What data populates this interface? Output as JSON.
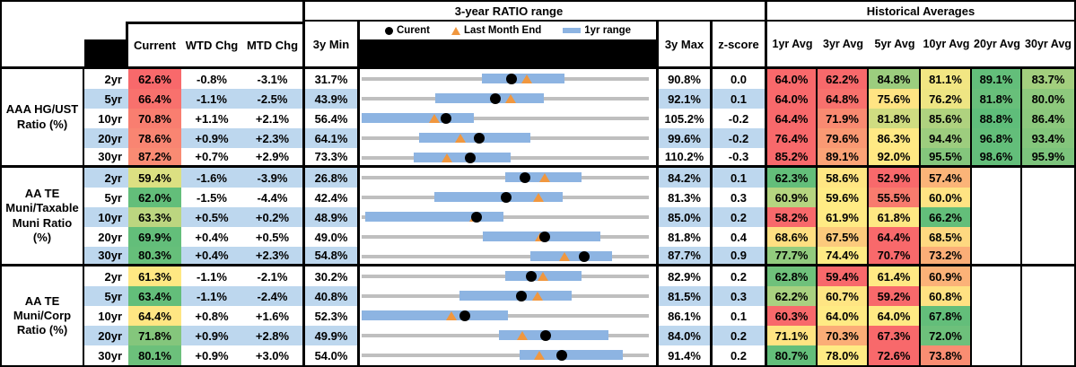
{
  "colors": {
    "stripe": "#BDD7EE",
    "bar": "#8DB4E2",
    "track": "#BFBFBF",
    "triangle": "#F0973F",
    "heat_red": "#F8696B",
    "heat_yellow": "#FFEB84",
    "heat_green": "#63BE7A"
  },
  "chart_data": {
    "type": "table",
    "range_title": "3-year RATIO range",
    "hist_title": "Historical Averages",
    "legend": {
      "current": "Curent",
      "last_month_end": "Last Month End",
      "range_1yr": "1yr range"
    },
    "headers": {
      "current": "Current",
      "wtd_chg": "WTD Chg",
      "mtd_chg": "MTD Chg",
      "min_3y": "3y Min",
      "max_3y": "3y Max",
      "zscore": "z-score",
      "averages": [
        "1yr Avg",
        "3yr Avg",
        "5yr Avg",
        "10yr Avg",
        "20yr Avg",
        "30yr Avg"
      ]
    },
    "range_chart_spec": {
      "style": "dot-range",
      "axis": "per-row linear scale from 3y Min to 3y Max",
      "marker_current": "black dot",
      "marker_last_month_end": "orange triangle",
      "bar_meaning": "1yr range"
    },
    "groups": [
      {
        "label": "AAA HG/UST\nRatio (%)",
        "rows": [
          {
            "tenor": "2yr",
            "current": "62.6%",
            "current_bg": "#F8696B",
            "wtd_chg": "-0.8%",
            "mtd_chg": "-3.1%",
            "min_3y": "31.7%",
            "max_3y": "90.8%",
            "zscore": "0.0",
            "avgs": [
              "64.0%",
              "62.2%",
              "84.8%",
              "81.1%",
              "89.1%",
              "83.7%"
            ],
            "avg_bgs": [
              "#F8696B",
              "#F8696B",
              "#9CCD7E",
              "#F2E683",
              "#63BE7A",
              "#A3CF7E"
            ],
            "chart": {
              "min": 31.7,
              "max": 90.8,
              "current": 62.6,
              "last_month_end": 65.7,
              "bar_lo": 56.4,
              "bar_hi": 73.4
            }
          },
          {
            "tenor": "5yr",
            "current": "66.4%",
            "current_bg": "#F8716D",
            "wtd_chg": "-1.1%",
            "mtd_chg": "-2.5%",
            "min_3y": "43.9%",
            "max_3y": "92.1%",
            "zscore": "0.1",
            "avgs": [
              "64.0%",
              "64.8%",
              "75.6%",
              "76.2%",
              "81.8%",
              "80.0%"
            ],
            "avg_bgs": [
              "#F8696B",
              "#F8716D",
              "#FFE483",
              "#EEE583",
              "#68BF7A",
              "#8EC97D"
            ],
            "chart": {
              "min": 43.9,
              "max": 92.1,
              "current": 66.4,
              "last_month_end": 68.9,
              "bar_lo": 56.3,
              "bar_hi": 74.4
            }
          },
          {
            "tenor": "10yr",
            "current": "70.8%",
            "current_bg": "#F97E70",
            "wtd_chg": "+1.1%",
            "mtd_chg": "+2.1%",
            "min_3y": "56.4%",
            "max_3y": "105.2%",
            "zscore": "-0.2",
            "avgs": [
              "64.4%",
              "71.9%",
              "81.8%",
              "85.6%",
              "88.8%",
              "86.4%"
            ],
            "avg_bgs": [
              "#F8696B",
              "#F98A71",
              "#CFDC81",
              "#AFD27F",
              "#5FBD7A",
              "#8CC87D"
            ],
            "chart": {
              "min": 56.4,
              "max": 105.2,
              "current": 70.8,
              "last_month_end": 68.7,
              "bar_lo": 56.4,
              "bar_hi": 75.5
            }
          },
          {
            "tenor": "20yr",
            "current": "78.6%",
            "current_bg": "#F98572",
            "wtd_chg": "+0.9%",
            "mtd_chg": "+2.3%",
            "min_3y": "64.1%",
            "max_3y": "99.6%",
            "zscore": "-0.2",
            "avgs": [
              "76.4%",
              "79.6%",
              "86.3%",
              "94.4%",
              "96.8%",
              "93.4%"
            ],
            "avg_bgs": [
              "#F8696B",
              "#FA9973",
              "#FFE984",
              "#9DCD7E",
              "#63BE7A",
              "#84C67C"
            ],
            "chart": {
              "min": 64.1,
              "max": 99.6,
              "current": 78.6,
              "last_month_end": 76.3,
              "bar_lo": 71.2,
              "bar_hi": 84.9
            }
          },
          {
            "tenor": "30yr",
            "current": "87.2%",
            "current_bg": "#F98B73",
            "wtd_chg": "+0.7%",
            "mtd_chg": "+2.9%",
            "min_3y": "73.3%",
            "max_3y": "110.2%",
            "zscore": "-0.3",
            "avgs": [
              "85.2%",
              "89.1%",
              "92.0%",
              "95.5%",
              "98.6%",
              "95.9%"
            ],
            "avg_bgs": [
              "#F8696B",
              "#FBA376",
              "#FFE883",
              "#84C67C",
              "#63BE7A",
              "#7CC47C"
            ],
            "chart": {
              "min": 73.3,
              "max": 110.2,
              "current": 87.2,
              "last_month_end": 84.3,
              "bar_lo": 80.0,
              "bar_hi": 92.4
            }
          }
        ]
      },
      {
        "label": "AA TE\nMuni/Taxable\nMuni Ratio\n(%)",
        "rows": [
          {
            "tenor": "2yr",
            "current": "59.4%",
            "current_bg": "#DCE082",
            "wtd_chg": "-1.6%",
            "mtd_chg": "-3.9%",
            "min_3y": "26.8%",
            "max_3y": "84.2%",
            "zscore": "0.1",
            "avgs": [
              "62.3%",
              "58.6%",
              "52.9%",
              "57.4%",
              "",
              ""
            ],
            "avg_bgs": [
              "#63BE7A",
              "#FFE683",
              "#F8696B",
              "#FBB478",
              "",
              ""
            ],
            "chart": {
              "min": 26.8,
              "max": 84.2,
              "current": 59.4,
              "last_month_end": 63.3,
              "bar_lo": 55.5,
              "bar_hi": 70.7
            }
          },
          {
            "tenor": "5yr",
            "current": "62.0%",
            "current_bg": "#63BE7A",
            "wtd_chg": "-1.5%",
            "mtd_chg": "-4.4%",
            "min_3y": "42.4%",
            "max_3y": "81.3%",
            "zscore": "0.3",
            "avgs": [
              "60.9%",
              "59.6%",
              "55.5%",
              "60.0%",
              "",
              ""
            ],
            "avg_bgs": [
              "#B5D580",
              "#FFEB84",
              "#F87B6E",
              "#FFE383",
              "",
              ""
            ],
            "chart": {
              "min": 42.4,
              "max": 81.3,
              "current": 62.0,
              "last_month_end": 66.4,
              "bar_lo": 52.2,
              "bar_hi": 69.6
            }
          },
          {
            "tenor": "10yr",
            "current": "63.3%",
            "current_bg": "#BCD680",
            "wtd_chg": "+0.5%",
            "mtd_chg": "+0.2%",
            "min_3y": "48.9%",
            "max_3y": "85.0%",
            "zscore": "0.2",
            "avgs": [
              "58.2%",
              "61.9%",
              "61.8%",
              "66.2%",
              "",
              ""
            ],
            "avg_bgs": [
              "#F8696B",
              "#FFEB84",
              "#FEE883",
              "#63BE7A",
              "",
              ""
            ],
            "chart": {
              "min": 48.9,
              "max": 85.0,
              "current": 63.3,
              "last_month_end": 63.1,
              "bar_lo": 49.3,
              "bar_hi": 66.7
            }
          },
          {
            "tenor": "20yr",
            "current": "69.9%",
            "current_bg": "#63BE7A",
            "wtd_chg": "+0.4%",
            "mtd_chg": "+0.5%",
            "min_3y": "49.0%",
            "max_3y": "81.8%",
            "zscore": "0.4",
            "avgs": [
              "68.6%",
              "67.5%",
              "64.4%",
              "68.5%",
              "",
              ""
            ],
            "avg_bgs": [
              "#FFDF81",
              "#FCCA7C",
              "#F8696B",
              "#FED880",
              "",
              ""
            ],
            "chart": {
              "min": 49.0,
              "max": 81.8,
              "current": 69.9,
              "last_month_end": 69.4,
              "bar_lo": 62.8,
              "bar_hi": 76.2
            }
          },
          {
            "tenor": "30yr",
            "current": "80.3%",
            "current_bg": "#66BF7A",
            "wtd_chg": "+0.4%",
            "mtd_chg": "+2.3%",
            "min_3y": "54.8%",
            "max_3y": "87.7%",
            "zscore": "0.9",
            "avgs": [
              "77.7%",
              "74.4%",
              "70.7%",
              "73.2%",
              "",
              ""
            ],
            "avg_bgs": [
              "#92CB7E",
              "#FFEB84",
              "#F8696B",
              "#FBAE77",
              "",
              ""
            ],
            "chart": {
              "min": 54.8,
              "max": 87.7,
              "current": 80.3,
              "last_month_end": 78.0,
              "bar_lo": 74.1,
              "bar_hi": 83.5
            }
          }
        ]
      },
      {
        "label": "AA TE\nMuni/Corp\nRatio (%)",
        "rows": [
          {
            "tenor": "2yr",
            "current": "61.3%",
            "current_bg": "#FFE883",
            "wtd_chg": "-1.1%",
            "mtd_chg": "-2.1%",
            "min_3y": "30.2%",
            "max_3y": "82.9%",
            "zscore": "0.2",
            "avgs": [
              "62.8%",
              "59.4%",
              "61.4%",
              "60.9%",
              "",
              ""
            ],
            "avg_bgs": [
              "#6FC17B",
              "#F8696B",
              "#FFE984",
              "#FBB278",
              "",
              ""
            ],
            "chart": {
              "min": 30.2,
              "max": 82.9,
              "current": 61.3,
              "last_month_end": 63.4,
              "bar_lo": 56.6,
              "bar_hi": 70.6
            }
          },
          {
            "tenor": "5yr",
            "current": "63.4%",
            "current_bg": "#63BE7A",
            "wtd_chg": "-1.1%",
            "mtd_chg": "-2.4%",
            "min_3y": "40.8%",
            "max_3y": "81.5%",
            "zscore": "0.3",
            "avgs": [
              "62.2%",
              "60.7%",
              "59.2%",
              "60.8%",
              "",
              ""
            ],
            "avg_bgs": [
              "#A8D180",
              "#FFE583",
              "#F8696B",
              "#FFE182",
              "",
              ""
            ],
            "chart": {
              "min": 40.8,
              "max": 81.5,
              "current": 63.4,
              "last_month_end": 65.8,
              "bar_lo": 54.7,
              "bar_hi": 70.5
            }
          },
          {
            "tenor": "10yr",
            "current": "64.4%",
            "current_bg": "#FFE683",
            "wtd_chg": "+0.8%",
            "mtd_chg": "+1.6%",
            "min_3y": "52.3%",
            "max_3y": "86.1%",
            "zscore": "0.1",
            "avgs": [
              "60.3%",
              "64.0%",
              "64.0%",
              "67.8%",
              "",
              ""
            ],
            "avg_bgs": [
              "#F8696B",
              "#FFEB84",
              "#FFEA84",
              "#63BE7A",
              "",
              ""
            ],
            "chart": {
              "min": 52.3,
              "max": 86.1,
              "current": 64.4,
              "last_month_end": 62.8,
              "bar_lo": 52.3,
              "bar_hi": 69.5
            }
          },
          {
            "tenor": "20yr",
            "current": "71.8%",
            "current_bg": "#84C67C",
            "wtd_chg": "+0.9%",
            "mtd_chg": "+2.8%",
            "min_3y": "49.9%",
            "max_3y": "84.0%",
            "zscore": "0.2",
            "avgs": [
              "71.1%",
              "70.3%",
              "67.3%",
              "72.0%",
              "",
              ""
            ],
            "avg_bgs": [
              "#FFE482",
              "#FBAD77",
              "#F8696B",
              "#6DC07B",
              "",
              ""
            ],
            "chart": {
              "min": 49.9,
              "max": 84.0,
              "current": 71.8,
              "last_month_end": 69.0,
              "bar_lo": 66.2,
              "bar_hi": 79.2
            }
          },
          {
            "tenor": "30yr",
            "current": "80.1%",
            "current_bg": "#6CC07B",
            "wtd_chg": "+0.9%",
            "mtd_chg": "+3.0%",
            "min_3y": "54.0%",
            "max_3y": "91.4%",
            "zscore": "0.2",
            "avgs": [
              "80.7%",
              "78.0%",
              "72.6%",
              "73.8%",
              "",
              ""
            ],
            "avg_bgs": [
              "#63BE7A",
              "#FFEB84",
              "#F8696B",
              "#F98D72",
              "",
              ""
            ],
            "chart": {
              "min": 54.0,
              "max": 91.4,
              "current": 80.1,
              "last_month_end": 77.1,
              "bar_lo": 74.6,
              "bar_hi": 88.0
            }
          }
        ]
      }
    ]
  }
}
